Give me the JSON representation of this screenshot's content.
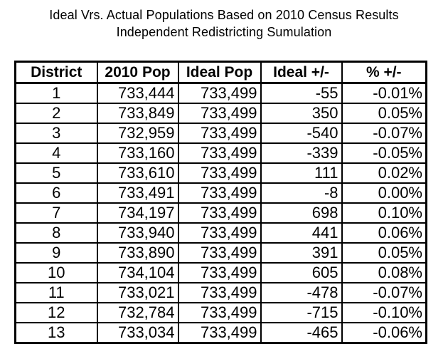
{
  "page": {
    "background": "#ffffff",
    "text_color": "#000000",
    "border_color": "#000000"
  },
  "title": {
    "line1": "Ideal Vrs. Actual Populations Based on 2010 Census Results",
    "line2": "Independent Redistricting Sumulation"
  },
  "table": {
    "columns": [
      "District",
      "2010 Pop",
      "Ideal Pop",
      "Ideal +/-",
      "% +/-"
    ],
    "rows": [
      [
        "1",
        "733,444",
        "733,499",
        "-55",
        "-0.01%"
      ],
      [
        "2",
        "733,849",
        "733,499",
        "350",
        "0.05%"
      ],
      [
        "3",
        "732,959",
        "733,499",
        "-540",
        "-0.07%"
      ],
      [
        "4",
        "733,160",
        "733,499",
        "-339",
        "-0.05%"
      ],
      [
        "5",
        "733,610",
        "733,499",
        "111",
        "0.02%"
      ],
      [
        "6",
        "733,491",
        "733,499",
        "-8",
        "0.00%"
      ],
      [
        "7",
        "734,197",
        "733,499",
        "698",
        "0.10%"
      ],
      [
        "8",
        "733,940",
        "733,499",
        "441",
        "0.06%"
      ],
      [
        "9",
        "733,890",
        "733,499",
        "391",
        "0.05%"
      ],
      [
        "10",
        "734,104",
        "733,499",
        "605",
        "0.08%"
      ],
      [
        "11",
        "733,021",
        "733,499",
        "-478",
        "-0.07%"
      ],
      [
        "12",
        "732,784",
        "733,499",
        "-715",
        "-0.10%"
      ],
      [
        "13",
        "733,034",
        "733,499",
        "-465",
        "-0.06%"
      ]
    ]
  },
  "chart_data": {
    "type": "table",
    "title": "Ideal Vrs. Actual Populations Based on 2010 Census Results — Independent Redistricting Sumulation",
    "columns": [
      "District",
      "2010 Pop",
      "Ideal Pop",
      "Ideal +/-",
      "% +/-"
    ],
    "rows": [
      [
        1,
        733444,
        733499,
        -55,
        -0.01
      ],
      [
        2,
        733849,
        733499,
        350,
        0.05
      ],
      [
        3,
        732959,
        733499,
        -540,
        -0.07
      ],
      [
        4,
        733160,
        733499,
        -339,
        -0.05
      ],
      [
        5,
        733610,
        733499,
        111,
        0.02
      ],
      [
        6,
        733491,
        733499,
        -8,
        0.0
      ],
      [
        7,
        734197,
        733499,
        698,
        0.1
      ],
      [
        8,
        733940,
        733499,
        441,
        0.06
      ],
      [
        9,
        733890,
        733499,
        391,
        0.05
      ],
      [
        10,
        734104,
        733499,
        605,
        0.08
      ],
      [
        11,
        733021,
        733499,
        -478,
        -0.07
      ],
      [
        12,
        732784,
        733499,
        -715,
        -0.1
      ],
      [
        13,
        733034,
        733499,
        -465,
        -0.06
      ]
    ],
    "units": {
      "pct_column": "percent"
    },
    "layout": {
      "grid": true,
      "header_bold": true,
      "outer_border_px": 3,
      "inner_border_px": 2
    }
  }
}
